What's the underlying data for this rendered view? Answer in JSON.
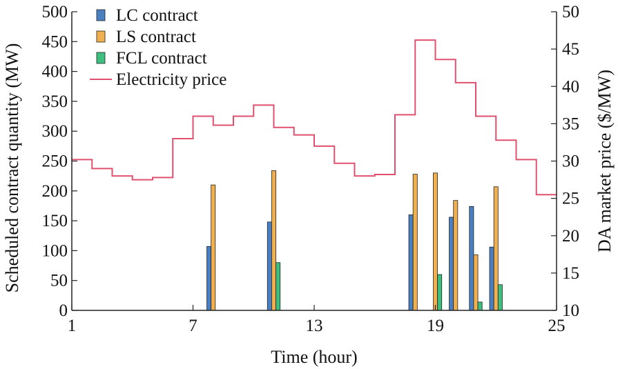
{
  "chart_data": {
    "type": "bar",
    "xlabel": "Time (hour)",
    "ylabel_left": "Scheduled contract quantity (MW)",
    "ylabel_right": "DA market price ($/MW)",
    "xlim": [
      1,
      25
    ],
    "xticks": [
      "1",
      "7",
      "13",
      "19",
      "25"
    ],
    "ylim_left": [
      0,
      500
    ],
    "yticks_left": [
      "0",
      "50",
      "100",
      "150",
      "200",
      "250",
      "300",
      "350",
      "400",
      "450",
      "500"
    ],
    "ylim_right": [
      10,
      50
    ],
    "yticks_right": [
      "10",
      "15",
      "20",
      "25",
      "30",
      "35",
      "40",
      "45",
      "50"
    ],
    "grid": false,
    "legend_position": "top-left",
    "series": [
      {
        "name": "LC contract",
        "color": "#4a7fc1",
        "hours": [
          8,
          11,
          18,
          19,
          20,
          21,
          22
        ],
        "values": [
          107,
          148,
          160,
          0,
          156,
          174,
          106
        ]
      },
      {
        "name": "LS contract",
        "color": "#f0b050",
        "hours": [
          8,
          11,
          18,
          19,
          20,
          21,
          22
        ],
        "values": [
          210,
          234,
          228,
          230,
          184,
          93,
          207
        ]
      },
      {
        "name": "FCL contract",
        "color": "#3fbf7f",
        "hours": [
          8,
          11,
          18,
          19,
          20,
          21,
          22
        ],
        "values": [
          0,
          80,
          0,
          60,
          0,
          14,
          43
        ]
      }
    ],
    "price": {
      "name": "Electricity price",
      "color": "#e0506e",
      "hours": [
        1,
        2,
        3,
        4,
        5,
        6,
        7,
        8,
        9,
        10,
        11,
        12,
        13,
        14,
        15,
        16,
        17,
        18,
        19,
        20,
        21,
        22,
        23,
        24
      ],
      "values": [
        30.2,
        29.0,
        28.0,
        27.5,
        27.8,
        33.0,
        36.0,
        34.8,
        36.0,
        37.5,
        34.5,
        33.5,
        32.0,
        29.7,
        28.0,
        28.2,
        36.2,
        46.2,
        43.6,
        40.5,
        36.0,
        32.8,
        30.2,
        25.5
      ]
    }
  }
}
